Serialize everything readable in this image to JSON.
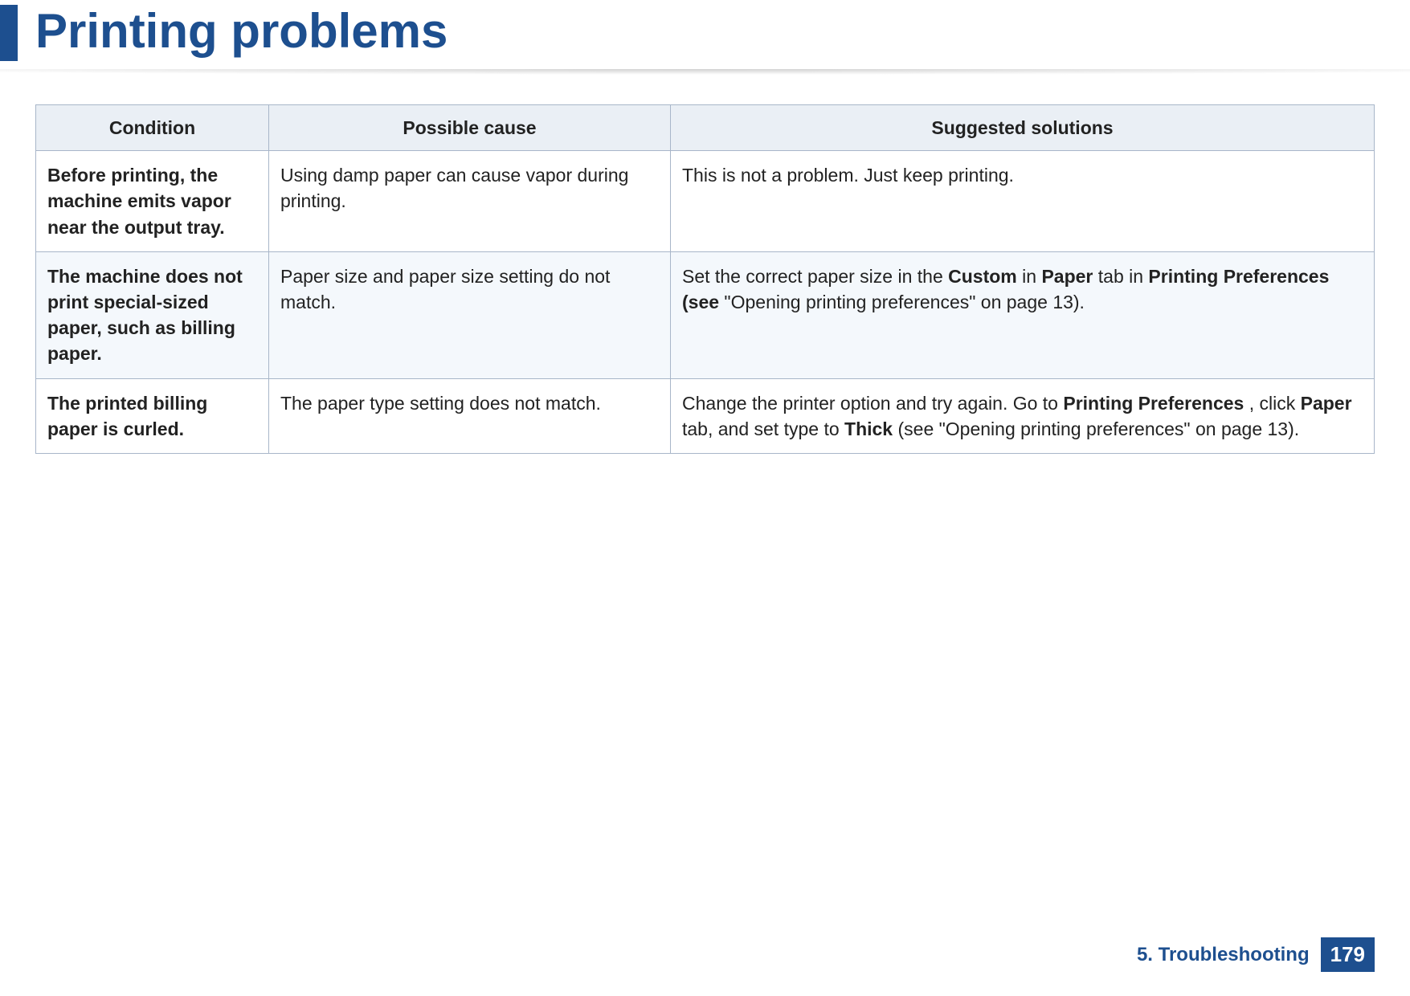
{
  "page": {
    "title": "Printing problems",
    "accent_color": "#1d4f8f",
    "background_color": "#ffffff"
  },
  "table": {
    "header_bg": "#eaeff5",
    "border_color": "#a8b6c9",
    "alt_row_bg": "#f4f8fc",
    "columns": {
      "condition": "Condition",
      "cause": "Possible cause",
      "solutions": "Suggested solutions"
    },
    "rows": [
      {
        "condition": "Before printing, the machine emits vapor near the output tray.",
        "cause": "Using damp paper can cause vapor during printing.",
        "solution_runs": [
          {
            "t": "This is not a problem. Just keep printing.",
            "b": false
          }
        ]
      },
      {
        "condition": "The machine does not print special-sized paper, such as billing paper.",
        "cause": "Paper size and paper size setting do not match.",
        "solution_runs": [
          {
            "t": "Set the correct paper size in the ",
            "b": false
          },
          {
            "t": "Custom",
            "b": true
          },
          {
            "t": " in ",
            "b": false
          },
          {
            "t": "Paper",
            "b": true
          },
          {
            "t": " tab in ",
            "b": false
          },
          {
            "t": "Printing Preferences (see",
            "b": true
          },
          {
            "t": " \"Opening printing preferences\" on page 13).",
            "b": false
          }
        ]
      },
      {
        "condition": "The printed billing paper is curled.",
        "cause": "The paper type setting does not match.",
        "solution_runs": [
          {
            "t": "Change the printer option and try again. Go to ",
            "b": false
          },
          {
            "t": "Printing Preferences",
            "b": true
          },
          {
            "t": " , click ",
            "b": false
          },
          {
            "t": "Paper",
            "b": true
          },
          {
            "t": " tab, and set type to ",
            "b": false
          },
          {
            "t": "Thick",
            "b": true
          },
          {
            "t": " (see \"Opening printing preferences\" on page 13).",
            "b": false
          }
        ]
      }
    ]
  },
  "footer": {
    "section": "5. Troubleshooting",
    "page_number": "179",
    "badge_bg": "#1d4f8f",
    "badge_fg": "#ffffff"
  }
}
